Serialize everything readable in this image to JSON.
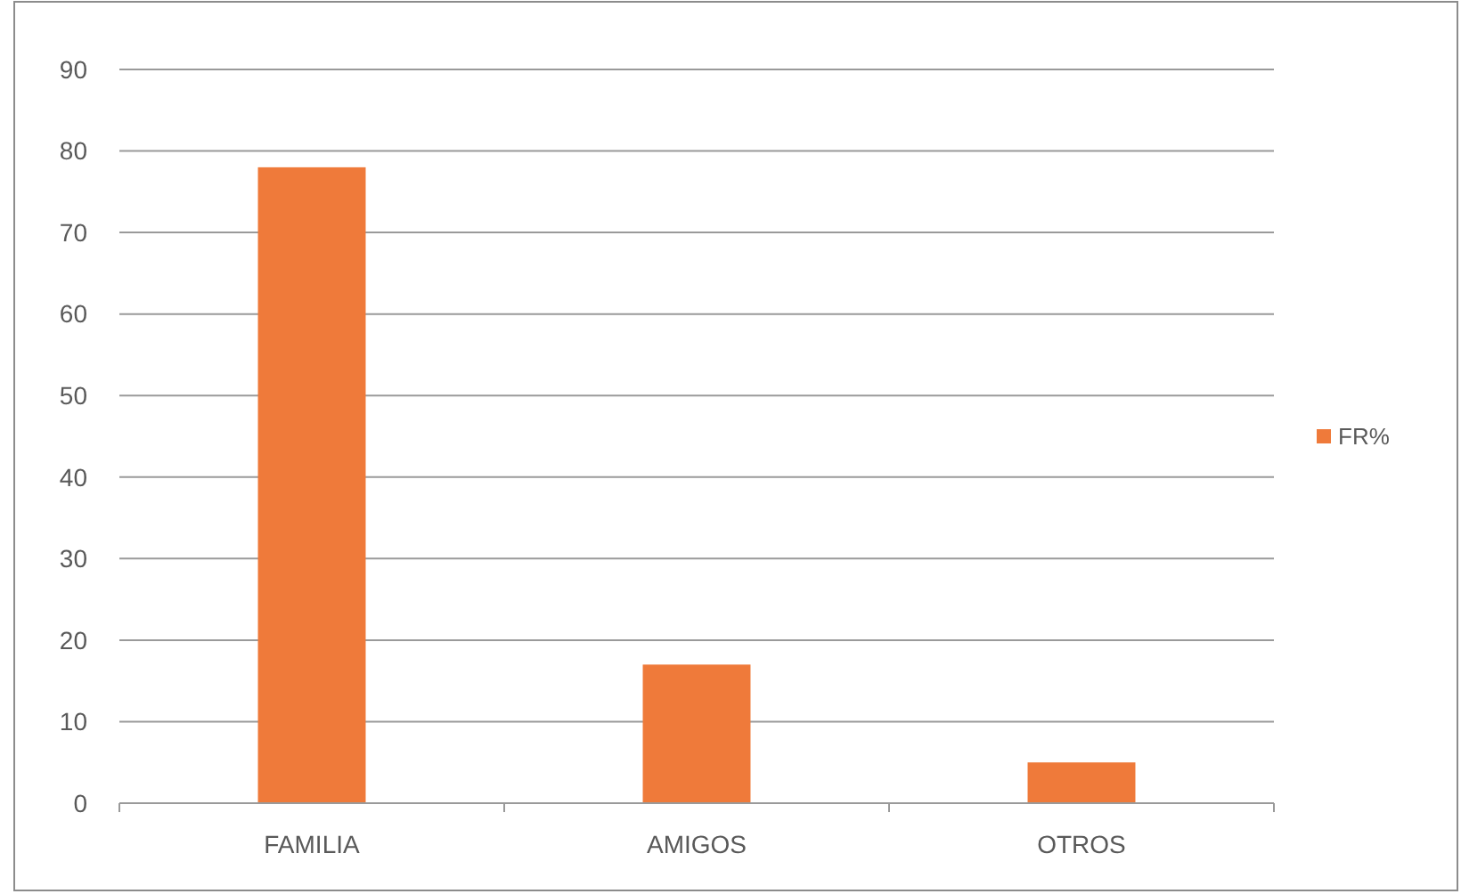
{
  "chart_data": {
    "type": "bar",
    "categories": [
      "FAMILIA",
      "AMIGOS",
      "OTROS"
    ],
    "series": [
      {
        "name": "FR%",
        "color": "#ef7a3a",
        "values": [
          78,
          17,
          5
        ]
      }
    ],
    "ylim": [
      0,
      90
    ],
    "yticks": [
      0,
      10,
      20,
      30,
      40,
      50,
      60,
      70,
      80,
      90
    ],
    "grid": "y",
    "legend": "right"
  }
}
